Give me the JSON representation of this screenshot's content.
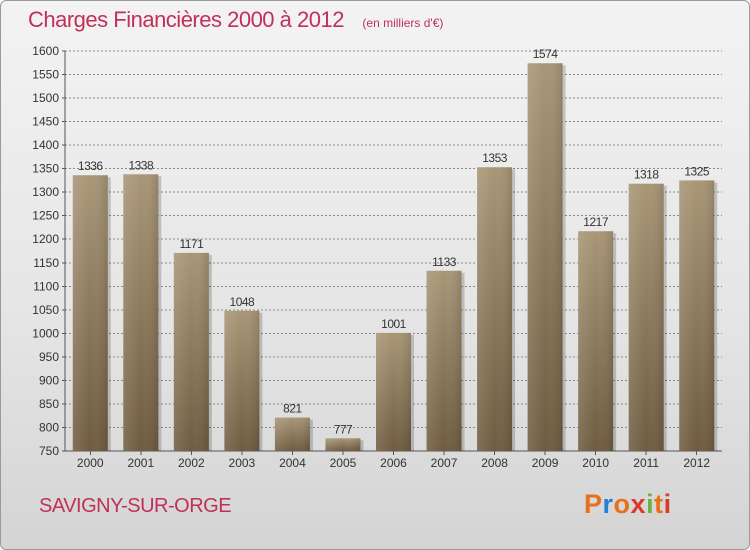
{
  "title": "Charges Financières 2000 à 2012",
  "subtitle": "(en milliers d'€)",
  "commune": "SAVIGNY-SUR-ORGE",
  "logo": {
    "text": "Proxiti",
    "letter_colors": [
      "#e8701a",
      "#2a7fd0",
      "#e8701a",
      "#d93a2a",
      "#6cb33f",
      "#e8701a",
      "#d93a2a"
    ]
  },
  "colors": {
    "title": "#c0305a",
    "bar_light": "#a89676",
    "bar_dark": "#6f5c40",
    "grid": "#8a8a8a"
  },
  "chart_data": {
    "type": "bar",
    "title": "Charges Financières 2000 à 2012",
    "subtitle": "(en milliers d'€)",
    "categories": [
      "2000",
      "2001",
      "2002",
      "2003",
      "2004",
      "2005",
      "2006",
      "2007",
      "2008",
      "2009",
      "2010",
      "2011",
      "2012"
    ],
    "values": [
      1336,
      1338,
      1171,
      1048,
      821,
      777,
      1001,
      1133,
      1353,
      1574,
      1217,
      1318,
      1325
    ],
    "ylim": [
      750,
      1600
    ],
    "yticks": [
      750,
      800,
      850,
      900,
      950,
      1000,
      1050,
      1100,
      1150,
      1200,
      1250,
      1300,
      1350,
      1400,
      1450,
      1500,
      1550,
      1600
    ],
    "grid": true,
    "xlabel": "",
    "ylabel": ""
  }
}
